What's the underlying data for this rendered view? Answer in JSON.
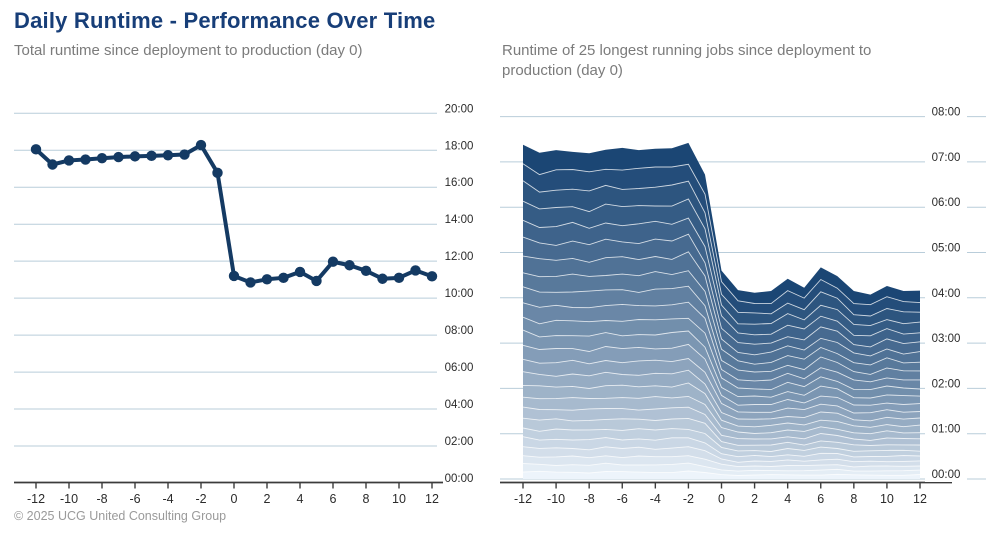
{
  "header": {
    "title": "Daily Runtime - Performance Over Time"
  },
  "charts": {
    "left_subtitle": "Total runtime since deployment to production (day 0)",
    "right_subtitle": "Runtime of 25 longest running jobs since deployment to production (day 0)"
  },
  "footer": {
    "copyright": "© 2025 UCG United Consulting Group"
  },
  "colors": {
    "title": "#173e78",
    "subtitle": "#7b7b7b",
    "line": "#143a63",
    "gridline": "#b9cdda",
    "axis": "#3c3c3c",
    "tick_text": "#2b2b2b",
    "footer": "#9a9a9a",
    "stack_top": "#1b4674",
    "stack_bottom": "#edf4fb",
    "band_separator": "rgba(255,255,255,0.75)",
    "background": "#ffffff"
  },
  "chart_data": [
    {
      "type": "line",
      "title": "Total runtime since deployment to production (day 0)",
      "x": [
        -12,
        -11,
        -10,
        -9,
        -8,
        -7,
        -6,
        -5,
        -4,
        -3,
        -2,
        -1,
        0,
        1,
        2,
        3,
        4,
        5,
        6,
        7,
        8,
        9,
        10,
        11,
        12
      ],
      "values_hours": [
        18.05,
        17.23,
        17.45,
        17.5,
        17.57,
        17.63,
        17.67,
        17.7,
        17.73,
        17.77,
        18.28,
        16.78,
        11.2,
        10.85,
        11.02,
        11.1,
        11.42,
        10.93,
        11.97,
        11.78,
        11.48,
        11.05,
        11.1,
        11.5,
        11.18
      ],
      "values_hhmm": [
        "18:03",
        "17:14",
        "17:27",
        "17:30",
        "17:34",
        "17:38",
        "17:40",
        "17:42",
        "17:44",
        "17:46",
        "18:17",
        "16:47",
        "11:12",
        "10:51",
        "11:01",
        "11:06",
        "11:25",
        "10:56",
        "11:58",
        "11:47",
        "11:29",
        "11:03",
        "11:06",
        "11:30",
        "11:11"
      ],
      "ylim_hours": [
        0,
        20
      ],
      "ytick_labels": [
        "00:00",
        "02:00",
        "04:00",
        "06:00",
        "08:00",
        "10:00",
        "12:00",
        "14:00",
        "16:00",
        "18:00",
        "20:00"
      ],
      "xtick_labels": [
        "-12",
        "-10",
        "-8",
        "-6",
        "-4",
        "-2",
        "0",
        "2",
        "4",
        "6",
        "8",
        "10",
        "12"
      ],
      "grid": true,
      "legend": "none",
      "line_color": "#143a63",
      "marker": "circle"
    },
    {
      "type": "stacked-area",
      "title": "Runtime of 25 longest running jobs since deployment to production (day 0)",
      "n_jobs": 25,
      "x": [
        -12,
        -11,
        -10,
        -9,
        -8,
        -7,
        -6,
        -5,
        -4,
        -3,
        -2,
        -1,
        0,
        1,
        2,
        3,
        4,
        5,
        6,
        7,
        8,
        9,
        10,
        11,
        12
      ],
      "stack_totals_hours": [
        7.38,
        7.2,
        7.26,
        7.22,
        7.19,
        7.27,
        7.31,
        7.26,
        7.29,
        7.3,
        7.42,
        6.72,
        4.6,
        4.17,
        4.11,
        4.15,
        4.42,
        4.22,
        4.67,
        4.48,
        4.15,
        4.07,
        4.26,
        4.15,
        4.16
      ],
      "stack_totals_hhmm": [
        "07:23",
        "07:12",
        "07:16",
        "07:13",
        "07:11",
        "07:16",
        "07:19",
        "07:16",
        "07:17",
        "07:18",
        "07:25",
        "06:43",
        "04:36",
        "04:10",
        "04:07",
        "04:09",
        "04:25",
        "04:13",
        "04:40",
        "04:29",
        "04:09",
        "04:04",
        "04:16",
        "04:09",
        "04:10"
      ],
      "job_weights_bottom_to_top": [
        0.6,
        0.645,
        0.69,
        0.735,
        0.78,
        0.825,
        0.87,
        0.915,
        0.96,
        1.005,
        1.05,
        1.095,
        1.14,
        1.185,
        1.23,
        1.275,
        1.32,
        1.365,
        1.41,
        1.455,
        1.5,
        1.545,
        1.59,
        1.635,
        1.68
      ],
      "band_wiggle": 0.1,
      "ylim_hours": [
        0,
        8
      ],
      "ytick_labels": [
        "00:00",
        "01:00",
        "02:00",
        "03:00",
        "04:00",
        "05:00",
        "06:00",
        "07:00",
        "08:00"
      ],
      "xtick_labels": [
        "-12",
        "-10",
        "-8",
        "-6",
        "-4",
        "-2",
        "0",
        "2",
        "4",
        "6",
        "8",
        "10",
        "12"
      ],
      "grid": true,
      "legend": "none",
      "color_top": "#1b4674",
      "color_bottom": "#edf4fb"
    }
  ]
}
